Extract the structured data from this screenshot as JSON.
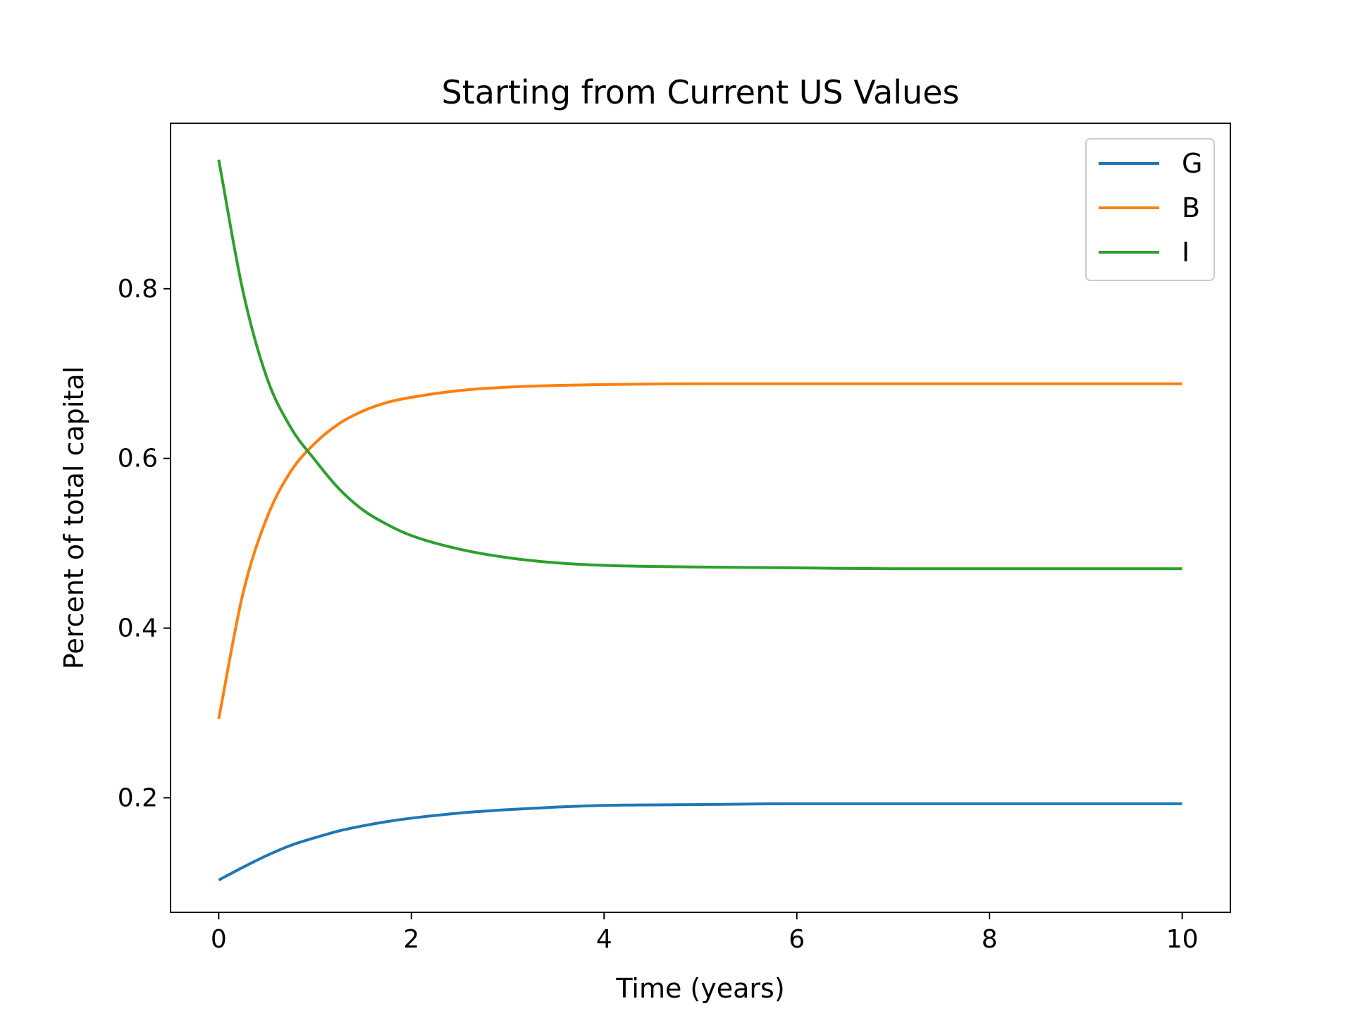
{
  "chart_data": {
    "type": "line",
    "title": "Starting from Current US Values",
    "xlabel": "Time (years)",
    "ylabel": "Percent of total capital",
    "xlim": [
      -0.5,
      10.5
    ],
    "ylim": [
      0.065,
      0.995
    ],
    "xticks": [
      0,
      2,
      4,
      6,
      8,
      10
    ],
    "xtick_labels": [
      "0",
      "2",
      "4",
      "6",
      "8",
      "10"
    ],
    "yticks": [
      0.2,
      0.4,
      0.6,
      0.8
    ],
    "ytick_labels": [
      "0.2",
      "0.4",
      "0.6",
      "0.8"
    ],
    "grid": false,
    "legend_position": "top-right",
    "x": [
      0,
      0.25,
      0.5,
      0.75,
      1,
      1.25,
      1.5,
      1.75,
      2,
      2.5,
      3,
      3.5,
      4,
      5,
      6,
      7,
      8,
      9,
      10
    ],
    "series": [
      {
        "name": "G",
        "color": "#1f77b4",
        "values": [
          0.103,
          0.118,
          0.132,
          0.144,
          0.153,
          0.161,
          0.167,
          0.172,
          0.176,
          0.182,
          0.186,
          0.189,
          0.191,
          0.192,
          0.193,
          0.193,
          0.193,
          0.193,
          0.193
        ]
      },
      {
        "name": "B",
        "color": "#ff7f0e",
        "values": [
          0.293,
          0.44,
          0.53,
          0.585,
          0.618,
          0.641,
          0.656,
          0.666,
          0.672,
          0.68,
          0.684,
          0.686,
          0.687,
          0.688,
          0.688,
          0.688,
          0.688,
          0.688,
          0.688
        ]
      },
      {
        "name": "I",
        "color": "#2ca02c",
        "values": [
          0.952,
          0.798,
          0.695,
          0.636,
          0.598,
          0.564,
          0.539,
          0.522,
          0.509,
          0.493,
          0.483,
          0.477,
          0.474,
          0.472,
          0.471,
          0.47,
          0.47,
          0.47,
          0.47
        ]
      }
    ]
  }
}
